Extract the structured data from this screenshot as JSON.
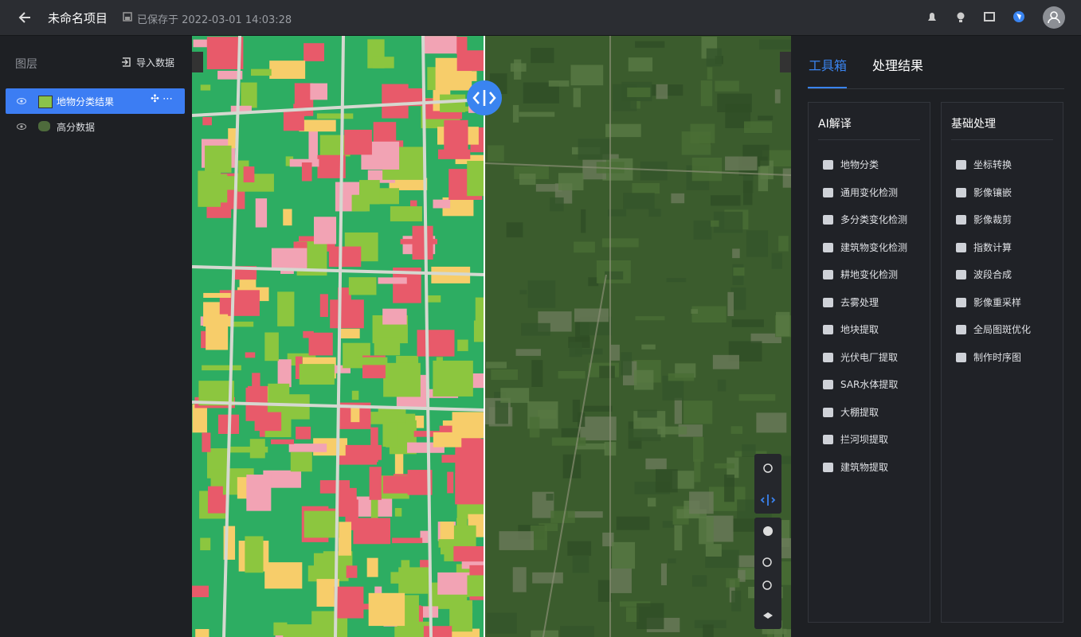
{
  "header": {
    "title": "未命名项目",
    "save_status": "已保存于 2022-03-01 14:03:28"
  },
  "layers_panel": {
    "title": "图层",
    "import_button": "导入数据",
    "layers": [
      "地物分类结果",
      "高分数据"
    ]
  },
  "toolbox": {
    "tabs": [
      "工具箱",
      "处理结果"
    ],
    "groups": [
      {
        "title": "AI解译",
        "items": [
          "地物分类",
          "通用变化检测",
          "多分类变化检测",
          "建筑物变化检测",
          "耕地变化检测",
          "去雾处理",
          "地块提取",
          "光伏电厂提取",
          "SAR水体提取",
          "大棚提取",
          "拦河坝提取",
          "建筑物提取"
        ]
      },
      {
        "title": "基础处理",
        "items": [
          "坐标转换",
          "影像镶嵌",
          "影像裁剪",
          "指数计算",
          "波段合成",
          "影像重采样",
          "全局图斑优化",
          "制作时序图"
        ]
      }
    ]
  }
}
